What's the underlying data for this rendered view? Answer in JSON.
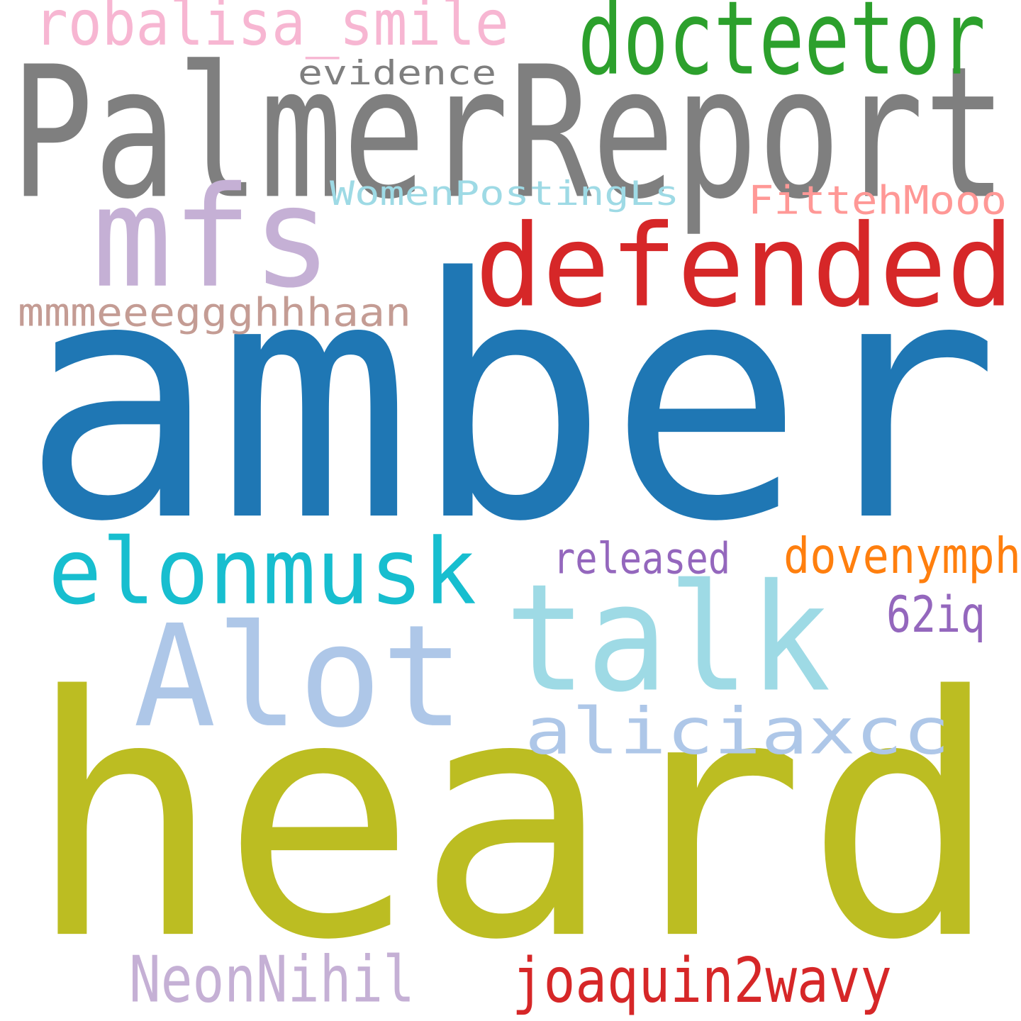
{
  "words": [
    {
      "key": "amber",
      "text": "amber",
      "color": "#1f77b4"
    },
    {
      "key": "heard",
      "text": "heard",
      "color": "#bcbd22"
    },
    {
      "key": "palmerreport",
      "text": "PalmerReport",
      "color": "#7f7f7f"
    },
    {
      "key": "mfs",
      "text": "mfs",
      "color": "#c5b0d5"
    },
    {
      "key": "defended",
      "text": "defended",
      "color": "#d62728"
    },
    {
      "key": "docteetor",
      "text": "docteetor",
      "color": "#2ca02c"
    },
    {
      "key": "robalisa_smile",
      "text": "robalisa_smile",
      "color": "#f7b6d2"
    },
    {
      "key": "evidence",
      "text": "evidence",
      "color": "#7f7f7f"
    },
    {
      "key": "womenpostingls",
      "text": "WomenPostingLs",
      "color": "#9edae5"
    },
    {
      "key": "fittehmooo",
      "text": "FittehMooo",
      "color": "#ff9896"
    },
    {
      "key": "mmmeeeggghhhaan",
      "text": "mmmeeeggghhhaan",
      "color": "#c49c94"
    },
    {
      "key": "elonmusk",
      "text": "elonmusk",
      "color": "#17becf"
    },
    {
      "key": "talk",
      "text": "talk",
      "color": "#9edae5"
    },
    {
      "key": "alot",
      "text": "Alot",
      "color": "#aec7e8"
    },
    {
      "key": "aliciaxcc",
      "text": "aliciaxcc",
      "color": "#aec7e8"
    },
    {
      "key": "released",
      "text": "released",
      "color": "#9467bd"
    },
    {
      "key": "dovenymph",
      "text": "dovenymph",
      "color": "#ff7f0e"
    },
    {
      "key": "62iq",
      "text": "62iq",
      "color": "#9467bd"
    },
    {
      "key": "neonnihil",
      "text": "NeonNihil",
      "color": "#c5b0d5"
    },
    {
      "key": "joaquin2wavy",
      "text": "joaquin2wavy",
      "color": "#d62728"
    }
  ]
}
